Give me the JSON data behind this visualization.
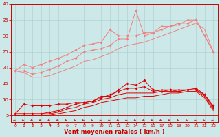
{
  "x": [
    0,
    1,
    2,
    3,
    4,
    5,
    6,
    7,
    8,
    9,
    10,
    11,
    12,
    13,
    14,
    15,
    16,
    17,
    18,
    19,
    20,
    21,
    22,
    23
  ],
  "line_light1": [
    19,
    21,
    20,
    21,
    22,
    23,
    24,
    25.5,
    27,
    27.5,
    28,
    32,
    30,
    30,
    30,
    31,
    31,
    33,
    33,
    33.5,
    35,
    35,
    30,
    25
  ],
  "line_light2": [
    19,
    19,
    18,
    18.5,
    19.5,
    20.5,
    22,
    23,
    25,
    25.5,
    26,
    27,
    29,
    29,
    38,
    30,
    31,
    32,
    33,
    34,
    34,
    35,
    30,
    25
  ],
  "line_light3": [
    19,
    18.5,
    17,
    17,
    17.5,
    18.5,
    19.5,
    20.5,
    22,
    22.5,
    23.5,
    24.5,
    26,
    27,
    27.5,
    28,
    29,
    30,
    31,
    32,
    33,
    34,
    32,
    25
  ],
  "line_dark1": [
    5.5,
    8.5,
    8,
    8,
    8,
    8.5,
    8.5,
    9,
    9,
    9.5,
    11,
    11,
    13,
    15,
    14.5,
    16,
    13,
    12.5,
    13,
    12.5,
    13,
    13,
    11.5,
    8
  ],
  "line_dark2": [
    5.5,
    5.5,
    5.5,
    5.5,
    6,
    6.5,
    7.5,
    8.5,
    9,
    9.5,
    10.5,
    11.5,
    12.5,
    13.5,
    13.5,
    14,
    12.5,
    13,
    13,
    13,
    13,
    13.5,
    11.5,
    7.5
  ],
  "line_dark3": [
    5.5,
    5.5,
    5.5,
    5.5,
    5.5,
    6,
    7,
    7.5,
    8.5,
    9,
    10,
    10.5,
    11.5,
    12,
    12,
    12,
    12,
    12.5,
    12.5,
    12.5,
    13,
    13,
    11,
    7
  ],
  "line_dark4": [
    5,
    5,
    5,
    5,
    5,
    5.5,
    6,
    6.5,
    7.5,
    8,
    9,
    9.5,
    10,
    10.5,
    10.5,
    11,
    11,
    11.5,
    12,
    12,
    12.5,
    12.5,
    10.5,
    6.5
  ],
  "color_light": "#f08080",
  "color_dark": "#dd0000",
  "color_arrow": "#cc2222",
  "bg_color": "#cce8e8",
  "grid_color": "#aacccc",
  "axis_color": "#cc0000",
  "xlabel": "Vent moyen/en rafales ( km/h )",
  "ylim": [
    3,
    40
  ],
  "xlim": [
    -0.5,
    23.5
  ],
  "yticks": [
    5,
    10,
    15,
    20,
    25,
    30,
    35,
    40
  ],
  "xticks": [
    0,
    1,
    2,
    3,
    4,
    5,
    6,
    7,
    8,
    9,
    10,
    11,
    12,
    13,
    14,
    15,
    16,
    17,
    18,
    19,
    20,
    21,
    22,
    23
  ]
}
